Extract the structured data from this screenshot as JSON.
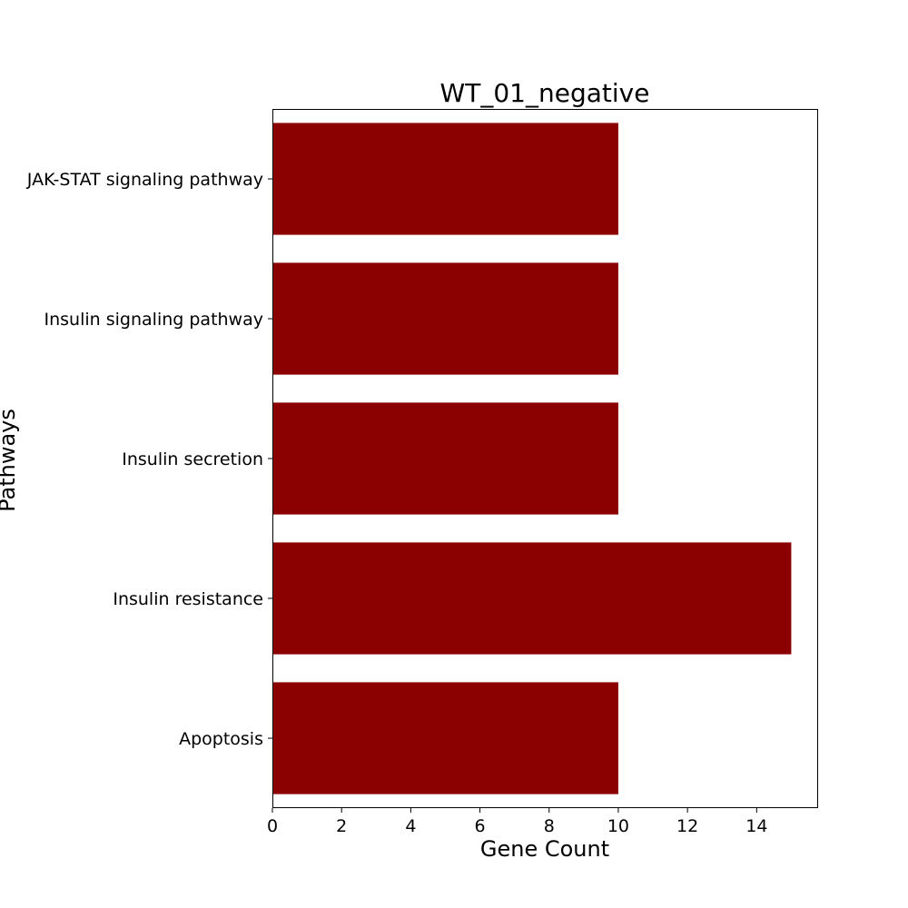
{
  "chart_data": {
    "type": "bar",
    "orientation": "horizontal",
    "title": "WT_01_negative",
    "xlabel": "Gene Count",
    "ylabel": "Pathways",
    "categories": [
      "Apoptosis",
      "Insulin resistance",
      "Insulin secretion",
      "Insulin signaling pathway",
      "JAK-STAT signaling pathway"
    ],
    "values": [
      10,
      15,
      10,
      10,
      10
    ],
    "xlim": [
      0,
      15.75
    ],
    "xticks": [
      0,
      2,
      4,
      6,
      8,
      10,
      12,
      14
    ],
    "bar_color": "#8b0000",
    "grid": false,
    "legend": "none"
  }
}
